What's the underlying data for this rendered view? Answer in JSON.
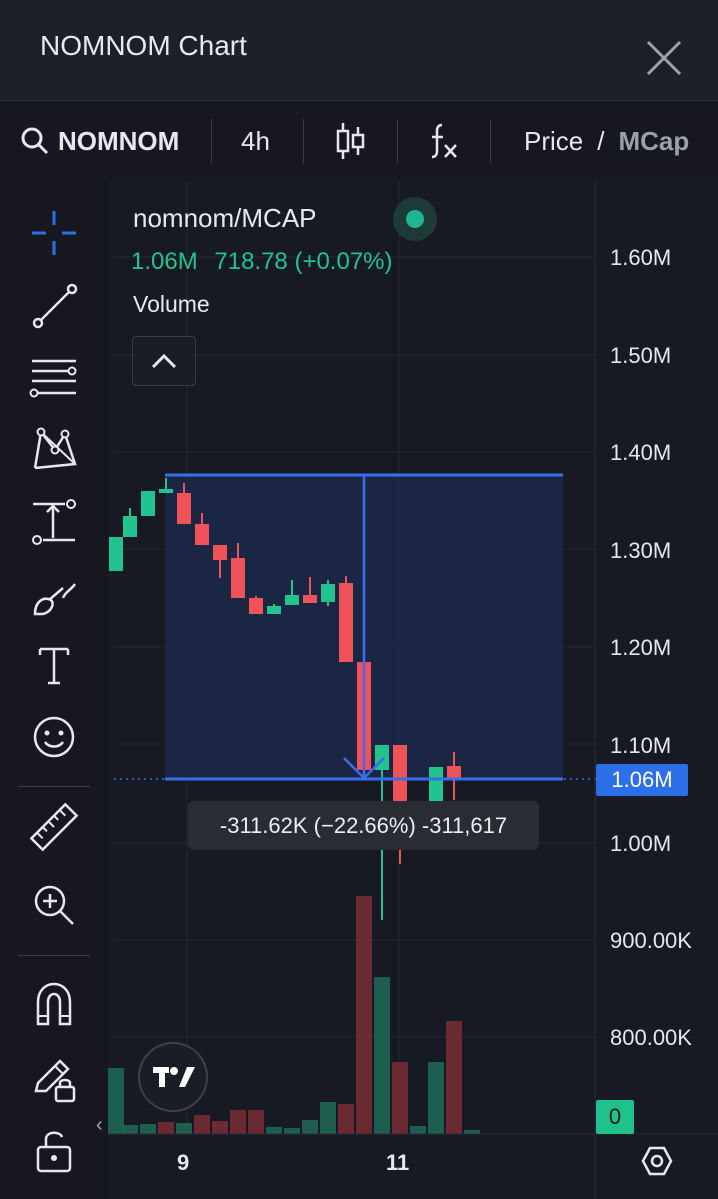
{
  "window": {
    "title": "NOMNOM Chart"
  },
  "toolbar": {
    "symbol": "NOMNOM",
    "interval": "4h",
    "price_label": "Price",
    "slash": "/",
    "mcap_label": "MCap"
  },
  "legend": {
    "title": "nomnom/MCAP",
    "value": "1.06M",
    "change": "718.78 (+0.07%)",
    "volume_label": "Volume"
  },
  "y_axis": {
    "labels": [
      "1.60M",
      "1.50M",
      "1.40M",
      "1.30M",
      "1.20M",
      "1.10M",
      "1.00M",
      "900.00K",
      "800.00K"
    ],
    "current_price_tag": "1.06M",
    "volume_tag": "0"
  },
  "x_axis": {
    "labels": [
      "9",
      "11"
    ]
  },
  "measure_tooltip": "-311.62K (−22.66%) -311,617",
  "colors": {
    "up": "#22c38e",
    "down": "#f0525a",
    "accent": "#2d6fe8",
    "measure_fill": "#1c2848"
  },
  "icons": [
    "search-icon",
    "candles-icon",
    "fx-icon",
    "crosshair-icon",
    "trendline-icon",
    "fib-icon",
    "pattern-icon",
    "measure-icon",
    "brush-icon",
    "text-icon",
    "emoji-icon",
    "ruler-icon",
    "zoom-in-icon",
    "magnet-icon",
    "lock-pencil-icon",
    "unlock-icon",
    "settings-icon",
    "close-icon",
    "chevron-up-icon"
  ]
}
